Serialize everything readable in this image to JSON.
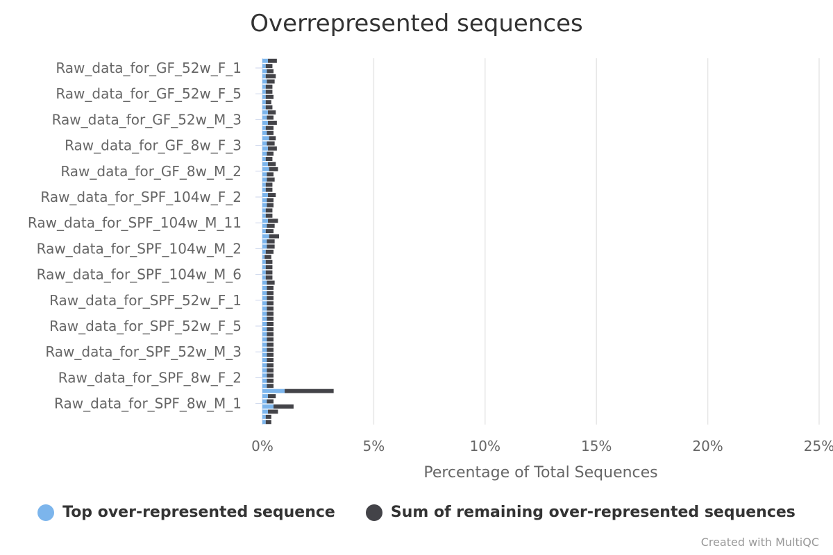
{
  "chart_data": {
    "type": "bar",
    "orientation": "horizontal",
    "stacked": true,
    "title": "Overrepresented sequences",
    "xlabel": "Percentage of Total Sequences",
    "xlim": [
      0,
      25
    ],
    "xticks": [
      "0%",
      "5%",
      "10%",
      "15%",
      "20%",
      "25%"
    ],
    "grid": true,
    "legend_position": "bottom",
    "visible_category_labels": [
      "Raw_data_for_GF_52w_F_1",
      "Raw_data_for_GF_52w_F_5",
      "Raw_data_for_GF_52w_M_3",
      "Raw_data_for_GF_8w_F_3",
      "Raw_data_for_GF_8w_M_2",
      "Raw_data_for_SPF_104w_F_2",
      "Raw_data_for_SPF_104w_M_11",
      "Raw_data_for_SPF_104w_M_2",
      "Raw_data_for_SPF_104w_M_6",
      "Raw_data_for_SPF_52w_F_1",
      "Raw_data_for_SPF_52w_F_5",
      "Raw_data_for_SPF_52w_M_3",
      "Raw_data_for_SPF_8w_F_2",
      "Raw_data_for_SPF_8w_M_1"
    ],
    "series": [
      {
        "name": "Top over-represented sequence",
        "color": "#7cb5ec",
        "values": [
          0.25,
          0.15,
          0.2,
          0.15,
          0.2,
          0.15,
          0.15,
          0.15,
          0.15,
          0.15,
          0.25,
          0.2,
          0.25,
          0.15,
          0.2,
          0.3,
          0.2,
          0.25,
          0.2,
          0.15,
          0.25,
          0.3,
          0.2,
          0.2,
          0.15,
          0.15,
          0.25,
          0.2,
          0.2,
          0.15,
          0.15,
          0.25,
          0.2,
          0.15,
          0.3,
          0.2,
          0.2,
          0.15,
          0.1,
          0.15,
          0.15,
          0.15,
          0.15,
          0.2,
          0.2,
          0.2,
          0.2,
          0.2,
          0.2,
          0.2,
          0.2,
          0.2,
          0.2,
          0.2,
          0.2,
          0.2,
          0.2,
          0.2,
          0.2,
          0.2,
          0.2,
          0.2,
          0.2,
          0.2,
          1.0,
          0.25,
          0.2,
          0.5,
          0.25,
          0.15,
          0.15
        ]
      },
      {
        "name": "Sum of remaining over-represented sequences",
        "color": "#434348",
        "values": [
          0.4,
          0.3,
          0.3,
          0.45,
          0.35,
          0.3,
          0.3,
          0.35,
          0.25,
          0.3,
          0.35,
          0.3,
          0.4,
          0.35,
          0.3,
          0.3,
          0.35,
          0.4,
          0.3,
          0.3,
          0.35,
          0.4,
          0.3,
          0.35,
          0.3,
          0.3,
          0.35,
          0.3,
          0.3,
          0.3,
          0.3,
          0.45,
          0.35,
          0.35,
          0.45,
          0.35,
          0.35,
          0.35,
          0.3,
          0.3,
          0.3,
          0.3,
          0.3,
          0.35,
          0.3,
          0.3,
          0.3,
          0.3,
          0.3,
          0.3,
          0.3,
          0.3,
          0.3,
          0.3,
          0.3,
          0.3,
          0.3,
          0.3,
          0.3,
          0.3,
          0.3,
          0.3,
          0.3,
          0.3,
          2.2,
          0.35,
          0.3,
          0.9,
          0.45,
          0.25,
          0.25
        ]
      }
    ]
  },
  "credits": "Created with MultiQC"
}
